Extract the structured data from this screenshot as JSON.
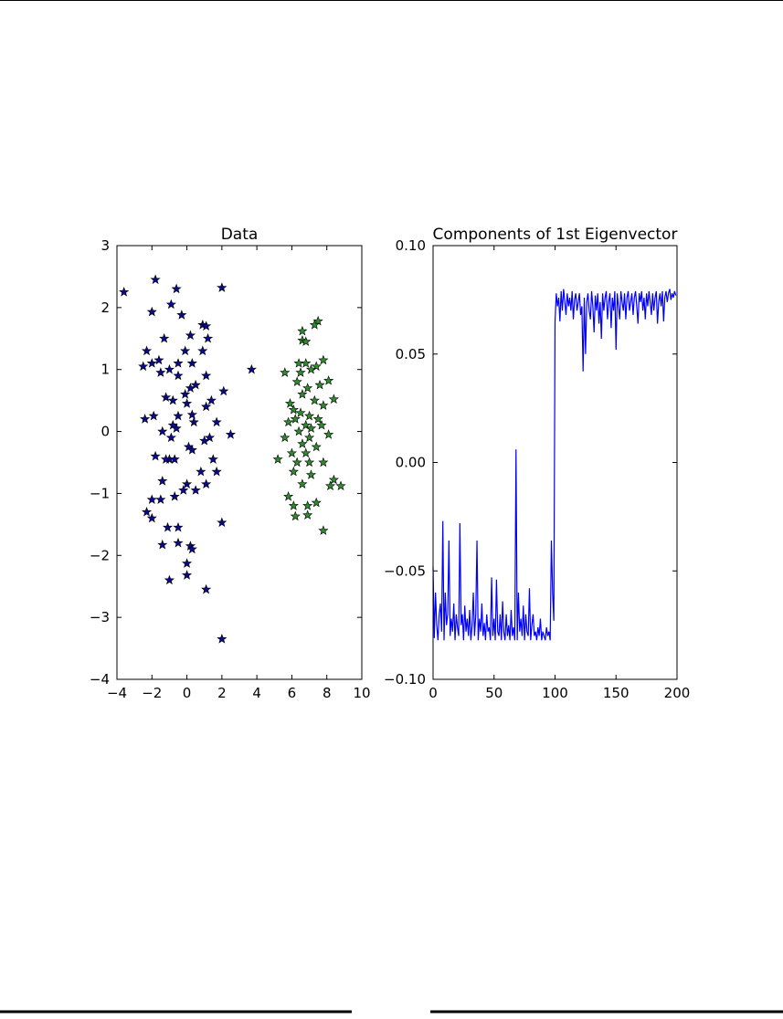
{
  "chart_data": [
    {
      "type": "scatter",
      "title": "Data",
      "xlim": [
        -4,
        10
      ],
      "ylim": [
        -4,
        3
      ],
      "xticks": [
        {
          "value": -4,
          "label": "−4"
        },
        {
          "value": -2,
          "label": "−2"
        },
        0,
        2,
        4,
        6,
        8,
        10
      ],
      "yticks": [
        {
          "value": -4,
          "label": "−4"
        },
        {
          "value": -3,
          "label": "−3"
        },
        {
          "value": -2,
          "label": "−2"
        },
        {
          "value": -1,
          "label": "−1"
        },
        0,
        1,
        2,
        3
      ],
      "series": [
        {
          "color": "#0a0a8c",
          "x": [
            -3.6,
            -1.8,
            -0.6,
            2,
            -2,
            -0.9,
            -0.3,
            0.9,
            1.1,
            -1.3,
            0.2,
            1.2,
            -2.3,
            -0.1,
            0.9,
            -1.6,
            -2,
            -0.5,
            0.3,
            -2.5,
            -1.5,
            -1,
            1.1,
            3.7,
            -0.5,
            0.2,
            0.5,
            -0.1,
            1.4,
            -1.2,
            2.1,
            -0.8,
            0,
            1.1,
            -2.4,
            -1.9,
            -0.5,
            0.3,
            1.7,
            -0.8,
            0.4,
            -1.4,
            -0.6,
            1.3,
            2.5,
            -0.9,
            0.1,
            1,
            -1.8,
            -1,
            0.3,
            1.5,
            -0.7,
            -1.2,
            0.8,
            1.7,
            -1.4,
            0,
            0.5,
            -0.2,
            1.1,
            -2,
            -1.5,
            -0.7,
            -2.3,
            -2,
            -1.1,
            -0.5,
            2,
            -1.4,
            -0.5,
            0.2,
            0.3,
            0,
            -1,
            0,
            1.1,
            2
          ],
          "values": [
            2.25,
            2.45,
            2.3,
            2.32,
            1.93,
            2.05,
            1.88,
            1.72,
            1.7,
            1.5,
            1.55,
            1.5,
            1.3,
            1.3,
            1.3,
            1.15,
            1.1,
            1.1,
            1.1,
            1.05,
            0.95,
            1,
            0.9,
            1,
            0.9,
            0.7,
            0.75,
            0.6,
            0.5,
            0.55,
            0.65,
            0.5,
            0.45,
            0.4,
            0.2,
            0.25,
            0.25,
            0.27,
            0.15,
            0.1,
            0.15,
            0,
            0.05,
            -0.1,
            -0.05,
            -0.1,
            -0.25,
            -0.15,
            -0.4,
            -0.45,
            -0.3,
            -0.45,
            -0.45,
            -0.45,
            -0.65,
            -0.65,
            -0.8,
            -0.85,
            -0.95,
            -0.95,
            -0.85,
            -1.1,
            -1.1,
            -1.05,
            -1.3,
            -1.4,
            -1.55,
            -1.55,
            -1.47,
            -1.83,
            -1.8,
            -1.85,
            -1.9,
            -2.13,
            -2.4,
            -2.32,
            -2.55,
            -3.35
          ]
        },
        {
          "color": "#2e8b2e",
          "x": [
            7.5,
            7.3,
            6.6,
            6.6,
            6.8,
            6.4,
            6.8,
            7.4,
            7.8,
            5.6,
            6.5,
            7.1,
            8.1,
            6.3,
            6.9,
            7.6,
            6.6,
            5.9,
            6.1,
            7.3,
            8.4,
            7.8,
            6.5,
            7,
            6.2,
            7.5,
            5.8,
            6.8,
            7.7,
            6.4,
            7.1,
            8.1,
            5.6,
            7,
            6.6,
            7.4,
            6,
            6.8,
            5.2,
            6.3,
            7,
            7.8,
            6.1,
            7.1,
            8.4,
            8.2,
            8.8,
            6.6,
            5.8,
            6.9,
            7.4,
            6.1,
            6.2,
            6.9,
            7.8
          ],
          "values": [
            1.78,
            1.72,
            1.62,
            1.47,
            1.45,
            1.1,
            1.1,
            1.05,
            1.15,
            0.95,
            0.95,
            1,
            0.82,
            0.8,
            0.7,
            0.75,
            0.6,
            0.45,
            0.35,
            0.5,
            0.52,
            0.42,
            0.3,
            0.25,
            0.2,
            0.2,
            0.15,
            0.1,
            0.1,
            0,
            0.05,
            -0.05,
            -0.1,
            -0.1,
            -0.2,
            -0.25,
            -0.35,
            -0.35,
            -0.45,
            -0.5,
            -0.5,
            -0.5,
            -0.65,
            -0.7,
            -0.78,
            -0.88,
            -0.88,
            -0.85,
            -1.05,
            -1.2,
            -1.15,
            -1.2,
            -1.37,
            -1.35,
            -1.6
          ]
        }
      ]
    },
    {
      "type": "line",
      "title": "Components of 1st Eigenvector",
      "xlim": [
        0,
        200
      ],
      "ylim": [
        -0.1,
        0.1
      ],
      "xticks": [
        0,
        50,
        100,
        150,
        200
      ],
      "yticks": [
        {
          "value": -0.1,
          "label": "−0.10"
        },
        {
          "value": -0.05,
          "label": "−0.05"
        },
        {
          "value": 0,
          "label": "0.00"
        },
        {
          "value": 0.05,
          "label": "0.05"
        },
        {
          "value": 0.1,
          "label": "0.10"
        }
      ],
      "series": [
        {
          "color": "#0000ff",
          "x": [
            0,
            1,
            2,
            3,
            4,
            5,
            6,
            7,
            8,
            9,
            10,
            11,
            12,
            13,
            14,
            15,
            16,
            17,
            18,
            19,
            20,
            21,
            22,
            23,
            24,
            25,
            26,
            27,
            28,
            29,
            30,
            31,
            32,
            33,
            34,
            35,
            36,
            37,
            38,
            39,
            40,
            41,
            42,
            43,
            44,
            45,
            46,
            47,
            48,
            49,
            50,
            51,
            52,
            53,
            54,
            55,
            56,
            57,
            58,
            59,
            60,
            61,
            62,
            63,
            64,
            65,
            66,
            67,
            68,
            69,
            70,
            71,
            72,
            73,
            74,
            75,
            76,
            77,
            78,
            79,
            80,
            81,
            82,
            83,
            84,
            85,
            86,
            87,
            88,
            89,
            90,
            91,
            92,
            93,
            94,
            95,
            96,
            97,
            98,
            99,
            100,
            101,
            102,
            103,
            104,
            105,
            106,
            107,
            108,
            109,
            110,
            111,
            112,
            113,
            114,
            115,
            116,
            117,
            118,
            119,
            120,
            121,
            122,
            123,
            124,
            125,
            126,
            127,
            128,
            129,
            130,
            131,
            132,
            133,
            134,
            135,
            136,
            137,
            138,
            139,
            140,
            141,
            142,
            143,
            144,
            145,
            146,
            147,
            148,
            149,
            150,
            151,
            152,
            153,
            154,
            155,
            156,
            157,
            158,
            159,
            160,
            161,
            162,
            163,
            164,
            165,
            166,
            167,
            168,
            169,
            170,
            171,
            172,
            173,
            174,
            175,
            176,
            177,
            178,
            179,
            180,
            181,
            182,
            183,
            184,
            185,
            186,
            187,
            188,
            189,
            190,
            191,
            192,
            193,
            194,
            195,
            196,
            197,
            198,
            199
          ],
          "values": [
            -0.048,
            -0.081,
            -0.06,
            -0.075,
            -0.082,
            -0.07,
            -0.065,
            -0.078,
            -0.027,
            -0.082,
            -0.06,
            -0.075,
            -0.07,
            -0.036,
            -0.08,
            -0.072,
            -0.078,
            -0.065,
            -0.082,
            -0.07,
            -0.076,
            -0.08,
            -0.028,
            -0.075,
            -0.07,
            -0.082,
            -0.066,
            -0.078,
            -0.072,
            -0.08,
            -0.068,
            -0.082,
            -0.075,
            -0.06,
            -0.08,
            -0.07,
            -0.036,
            -0.082,
            -0.072,
            -0.078,
            -0.065,
            -0.08,
            -0.074,
            -0.082,
            -0.07,
            -0.078,
            -0.076,
            -0.082,
            -0.053,
            -0.08,
            -0.072,
            -0.082,
            -0.054,
            -0.078,
            -0.08,
            -0.07,
            -0.082,
            -0.064,
            -0.078,
            -0.082,
            -0.07,
            -0.08,
            -0.075,
            -0.082,
            -0.068,
            -0.08,
            -0.076,
            -0.082,
            0.006,
            -0.082,
            -0.06,
            -0.078,
            -0.072,
            -0.08,
            -0.066,
            -0.082,
            -0.07,
            -0.078,
            -0.08,
            -0.058,
            -0.082,
            -0.075,
            -0.07,
            -0.08,
            -0.078,
            -0.082,
            -0.076,
            -0.08,
            -0.072,
            -0.082,
            -0.078,
            -0.08,
            -0.082,
            -0.076,
            -0.08,
            -0.078,
            -0.082,
            -0.036,
            -0.06,
            -0.073,
            0.065,
            0.078,
            0.072,
            0.076,
            0.065,
            0.079,
            0.07,
            0.08,
            0.074,
            0.068,
            0.078,
            0.072,
            0.076,
            0.07,
            0.079,
            0.066,
            0.075,
            0.078,
            0.07,
            0.074,
            0.078,
            0.068,
            0.072,
            0.042,
            0.076,
            0.05,
            0.074,
            0.078,
            0.07,
            0.066,
            0.079,
            0.072,
            0.06,
            0.077,
            0.07,
            0.078,
            0.064,
            0.074,
            0.057,
            0.078,
            0.07,
            0.076,
            0.079,
            0.066,
            0.074,
            0.078,
            0.062,
            0.076,
            0.07,
            0.079,
            0.052,
            0.078,
            0.072,
            0.066,
            0.079,
            0.074,
            0.07,
            0.078,
            0.066,
            0.076,
            0.079,
            0.07,
            0.074,
            0.078,
            0.068,
            0.076,
            0.079,
            0.072,
            0.064,
            0.078,
            0.074,
            0.079,
            0.07,
            0.076,
            0.066,
            0.078,
            0.072,
            0.079,
            0.074,
            0.068,
            0.078,
            0.07,
            0.076,
            0.079,
            0.064,
            0.074,
            0.078,
            0.072,
            0.079,
            0.065,
            0.076,
            0.079,
            0.074,
            0.078,
            0.08,
            0.075,
            0.078,
            0.076,
            0.079,
            0.077
          ]
        }
      ]
    }
  ]
}
